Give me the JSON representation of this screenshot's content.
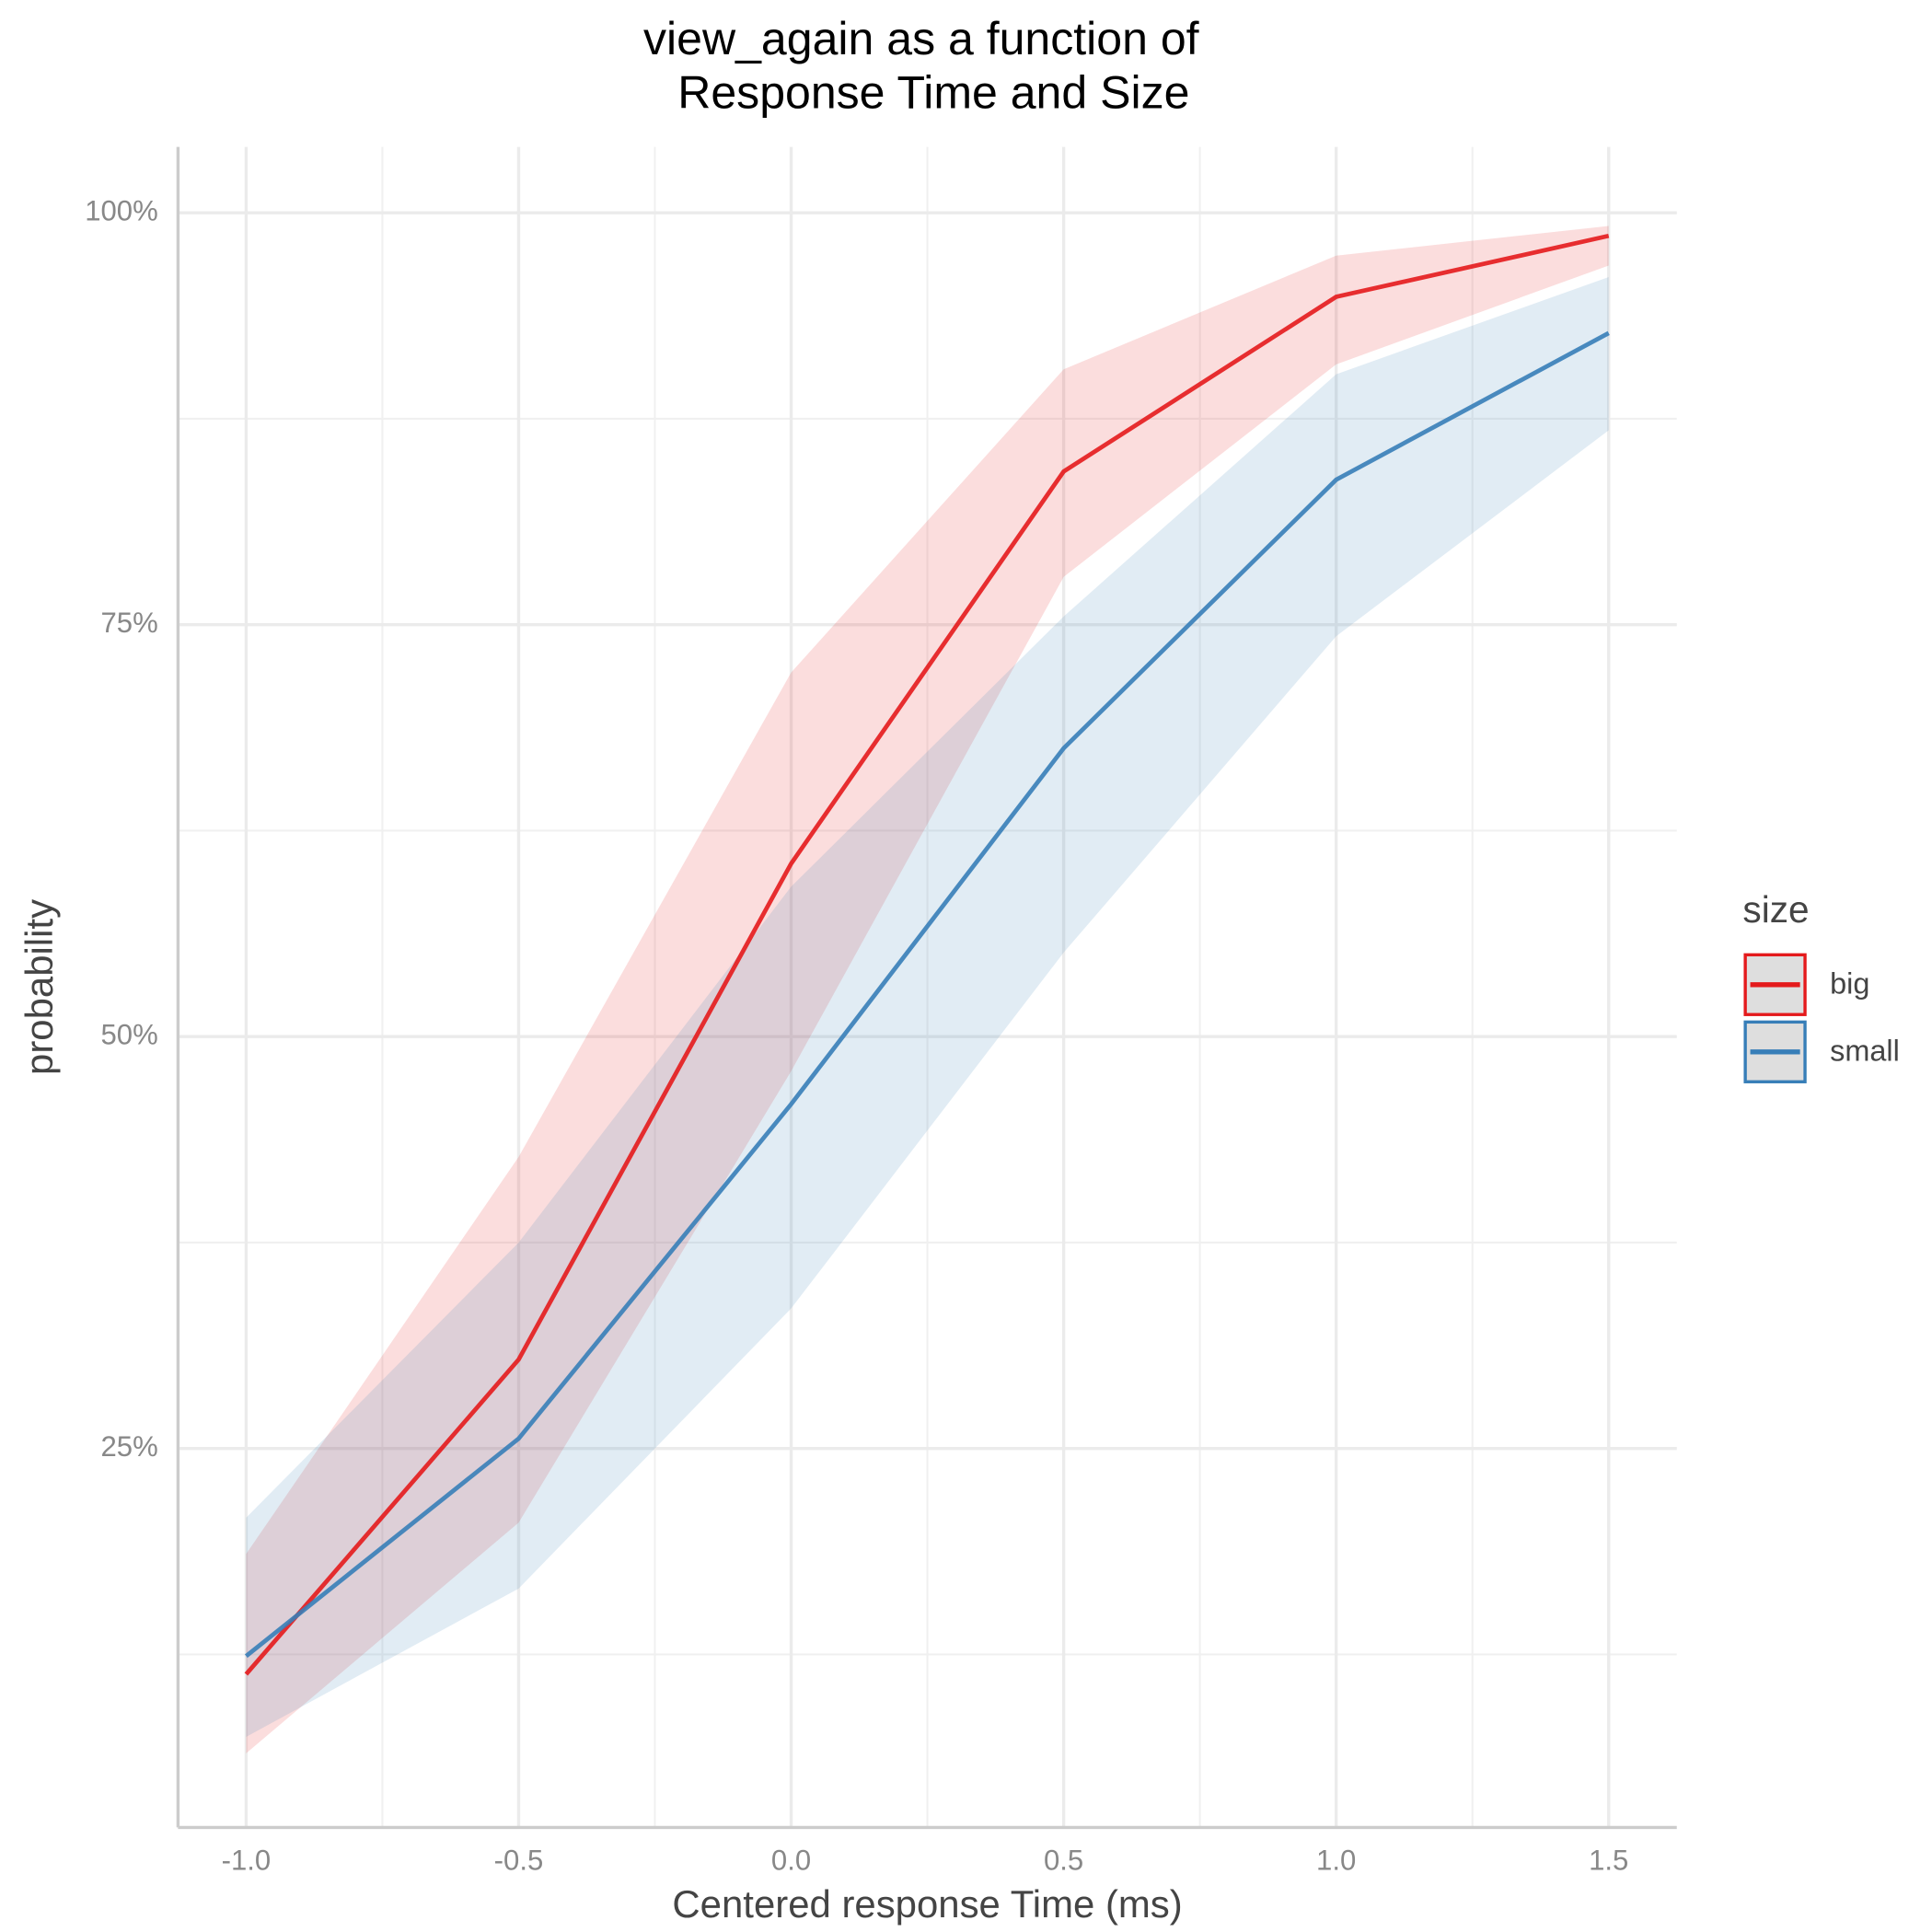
{
  "chart_data": {
    "type": "line",
    "title": [
      "view_again as a function of",
      "Response Time and Size"
    ],
    "x_label": "Centered response Time (ms)",
    "y_label": "probability",
    "x": [
      -1.0,
      -0.5,
      0.0,
      0.5,
      1.0,
      1.5
    ],
    "series": [
      {
        "name": "big",
        "color": "#e41a1c",
        "values": [
          11.3,
          30.4,
          60.5,
          84.3,
          94.9,
          98.6
        ],
        "lower": [
          6.5,
          20.5,
          47.9,
          77.9,
          90.8,
          96.8
        ],
        "upper": [
          18.6,
          42.7,
          72.1,
          90.5,
          97.4,
          99.2
        ]
      },
      {
        "name": "small",
        "color": "#377eb8",
        "values": [
          12.4,
          25.6,
          45.9,
          67.5,
          83.8,
          92.7
        ],
        "lower": [
          7.5,
          16.5,
          33.5,
          55.1,
          74.3,
          86.8
        ],
        "upper": [
          20.8,
          37.5,
          59.1,
          75.5,
          90.2,
          96.1
        ]
      }
    ],
    "xlim": [
      -1.125,
      1.625
    ],
    "ylim": [
      2,
      104
    ],
    "xticks": [
      {
        "value": -1.0,
        "label": "-1.0"
      },
      -0.5,
      {
        "value": 0.0,
        "label": "0.0"
      },
      0.5,
      {
        "value": 1.0,
        "label": "1.0"
      },
      1.5
    ],
    "yticks": [
      {
        "value": 25,
        "label": "25%"
      },
      {
        "value": 50,
        "label": "50%"
      },
      {
        "value": 75,
        "label": "75%"
      },
      {
        "value": 100,
        "label": "100%"
      }
    ],
    "xminorticks": [
      -0.75,
      -0.25,
      0.25,
      0.75,
      1.25
    ],
    "yminorticks": [
      12.5,
      37.5,
      62.5,
      87.5
    ],
    "grid": true,
    "legend_title": "size",
    "legend": "right"
  }
}
